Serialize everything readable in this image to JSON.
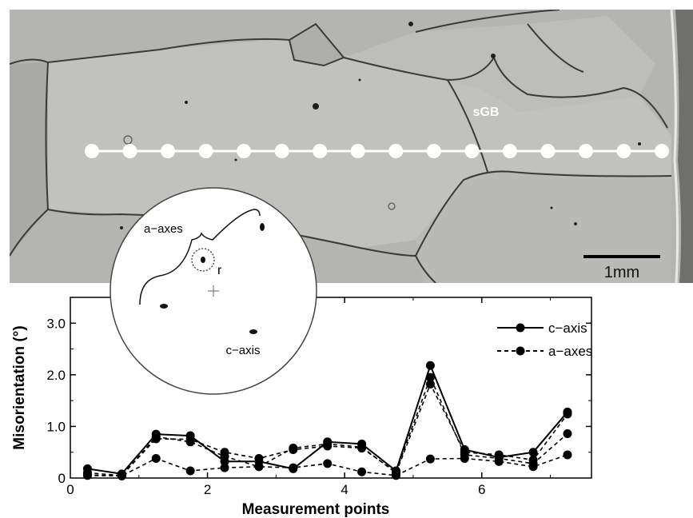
{
  "micrograph": {
    "grain_boundary_label": "sGB",
    "scale_bar_label": "1mm",
    "transect_points": 16
  },
  "pole_figure": {
    "a_axes_label": "a−axes",
    "c_axis_label": "c−axis",
    "r_label": "r"
  },
  "chart_data": {
    "type": "line",
    "xlabel": "Measurement points",
    "ylabel": "Misorientation (°)",
    "xlim": [
      0,
      7.6
    ],
    "ylim": [
      0,
      3.5
    ],
    "x_ticks": [
      0,
      2,
      4,
      6
    ],
    "x_tick_labels": [
      "0",
      "2",
      "4",
      "6"
    ],
    "y_ticks": [
      0,
      1,
      2,
      3
    ],
    "y_tick_labels": [
      "0",
      "1.0",
      "2.0",
      "3.0"
    ],
    "x": [
      0.25,
      0.75,
      1.25,
      1.75,
      2.25,
      2.75,
      3.25,
      3.75,
      4.25,
      4.75,
      5.25,
      5.75,
      6.25,
      6.75,
      7.25
    ],
    "series": [
      {
        "name": "c−axis",
        "style": "solid",
        "values": [
          0.18,
          0.08,
          0.85,
          0.82,
          0.32,
          0.32,
          0.18,
          0.7,
          0.66,
          0.14,
          2.18,
          0.55,
          0.4,
          0.5,
          1.28
        ]
      },
      {
        "name": "a−axes",
        "style": "dashed",
        "values": [
          0.1,
          0.05,
          0.76,
          0.75,
          0.5,
          0.38,
          0.55,
          0.62,
          0.58,
          0.12,
          1.95,
          0.45,
          0.38,
          0.28,
          0.86
        ]
      },
      {
        "name": "",
        "style": "dashed",
        "values": [
          0.06,
          0.04,
          0.8,
          0.7,
          0.42,
          0.22,
          0.58,
          0.66,
          0.6,
          0.1,
          1.82,
          0.5,
          0.45,
          0.35,
          1.24
        ]
      },
      {
        "name": "",
        "style": "dashed",
        "values": [
          0.05,
          0.04,
          0.38,
          0.14,
          0.2,
          0.22,
          0.2,
          0.28,
          0.12,
          0.05,
          0.37,
          0.38,
          0.32,
          0.22,
          0.45
        ]
      }
    ],
    "legend_position": "top-right",
    "grid": false
  },
  "colors": {
    "micrograph_bg": "#b7b7b3",
    "grain_line": "#3a3a38",
    "line": "#000000"
  }
}
